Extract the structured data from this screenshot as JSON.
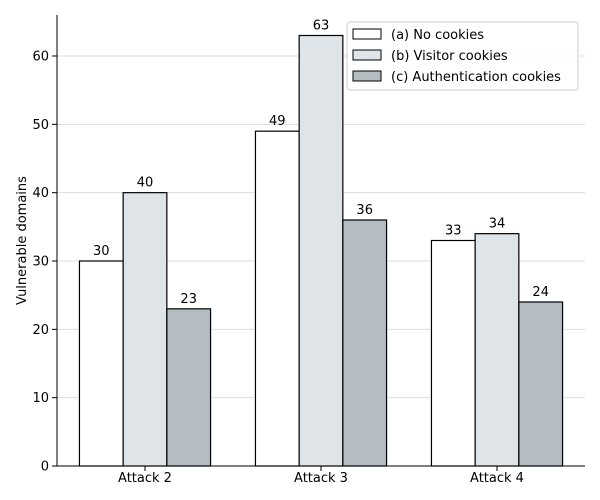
{
  "chart_data": {
    "type": "bar",
    "title": "",
    "xlabel": "",
    "ylabel": "Vulnerable domains",
    "categories": [
      "Attack 2",
      "Attack 3",
      "Attack 4"
    ],
    "series": [
      {
        "name": "(a) No cookies",
        "values": [
          30,
          49,
          33
        ],
        "color": "#ffffff"
      },
      {
        "name": "(b) Visitor cookies",
        "values": [
          40,
          63,
          34
        ],
        "color": "#dee4e7"
      },
      {
        "name": "(c) Authentication cookies",
        "values": [
          23,
          36,
          24
        ],
        "color": "#b3bdc2"
      }
    ],
    "ylim": [
      0,
      66
    ],
    "yticks": [
      0,
      10,
      20,
      30,
      40,
      50,
      60
    ],
    "grid": "horizontal",
    "legend_position": "top-right",
    "edge_color": "#000000",
    "grid_color": "#dddddd"
  }
}
